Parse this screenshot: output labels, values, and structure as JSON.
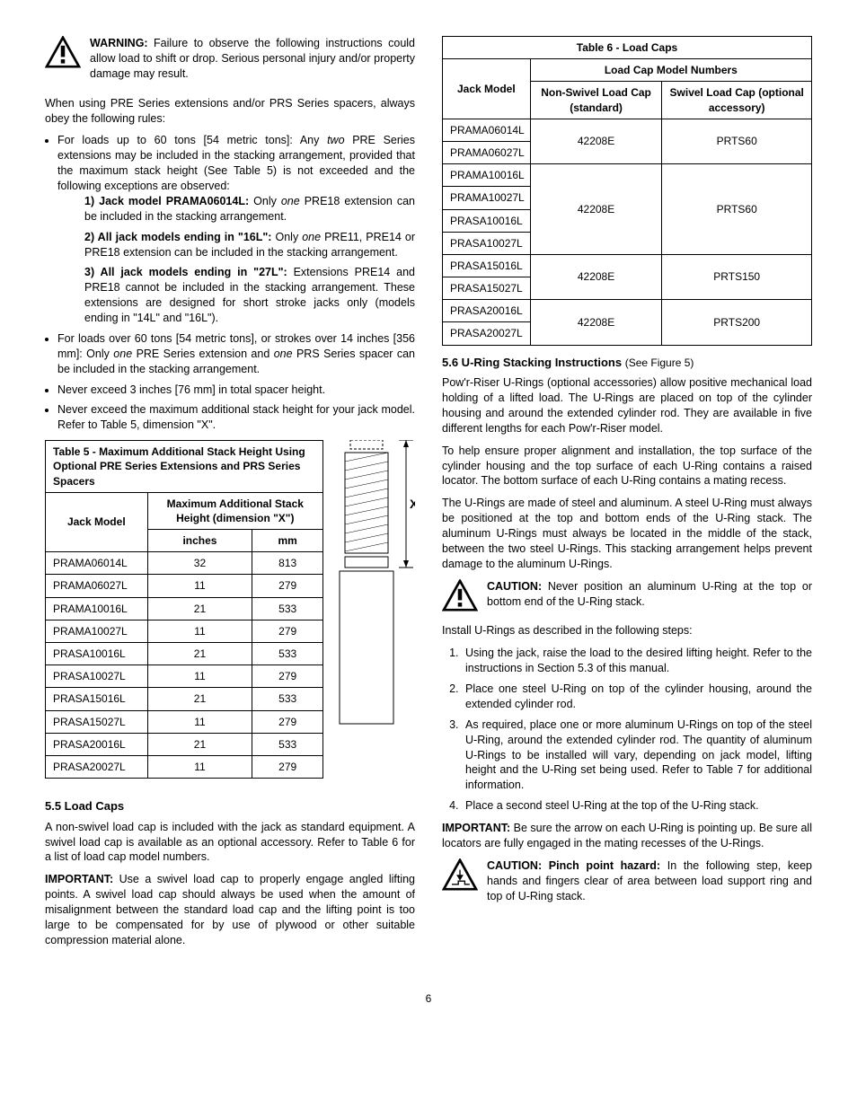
{
  "left": {
    "warning_label": "WARNING:",
    "warning_text": "Failure to observe the following instructions could allow load to shift or drop. Serious personal injury and/or property damage may result.",
    "intro": "When using PRE Series extensions and/or PRS Series spacers, always obey the following rules:",
    "bullet1_a": "For loads up to 60 tons [54 metric tons]: Any ",
    "bullet1_i": "two",
    "bullet1_b": " PRE Series extensions may be included in the stacking arrangement, provided that the maximum stack height (See Table 5) is not exceeded and the following exceptions are observed:",
    "sub1_label": "1) Jack model PRAMA06014L:",
    "sub1_a": " Only ",
    "sub1_i": "one",
    "sub1_b": " PRE18 extension can be included in the stacking arrangement.",
    "sub2_label": "2) All jack models ending in \"16L\":",
    "sub2_a": " Only ",
    "sub2_i": "one",
    "sub2_b": " PRE11, PRE14 or PRE18 extension can be included in the stacking arrangement.",
    "sub3_label": "3) All jack models ending in \"27L\":",
    "sub3_a": " Extensions PRE14 and PRE18 cannot be included in the stacking arrangement. ",
    "sub3_b": "These extensions are designed for short stroke jacks only (models ending in \"14L\" and \"16L\").",
    "bullet2_a": "For loads over 60 tons [54 metric tons], or strokes over 14 inches [356 mm]: Only ",
    "bullet2_i1": "one",
    "bullet2_b": " PRE Series extension and ",
    "bullet2_i2": "one",
    "bullet2_c": " PRS Series spacer can be included in the stacking arrangement.",
    "bullet3": "Never exceed 3 inches [76 mm] in total spacer height.",
    "bullet4": "Never exceed the maximum additional stack height for your jack model. Refer to Table 5, dimension \"X\".",
    "table5": {
      "title": "Table 5 - Maximum Additional Stack Height Using Optional PRE Series Extensions and PRS Series Spacers",
      "col_model": "Jack Model",
      "col_stack": "Maximum Additional Stack Height (dimension \"X\")",
      "col_in": "inches",
      "col_mm": "mm",
      "rows": [
        {
          "m": "PRAMA06014L",
          "in": "32",
          "mm": "813"
        },
        {
          "m": "PRAMA06027L",
          "in": "11",
          "mm": "279"
        },
        {
          "m": "PRAMA10016L",
          "in": "21",
          "mm": "533"
        },
        {
          "m": "PRAMA10027L",
          "in": "11",
          "mm": "279"
        },
        {
          "m": "PRASA10016L",
          "in": "21",
          "mm": "533"
        },
        {
          "m": "PRASA10027L",
          "in": "11",
          "mm": "279"
        },
        {
          "m": "PRASA15016L",
          "in": "21",
          "mm": "533"
        },
        {
          "m": "PRASA15027L",
          "in": "11",
          "mm": "279"
        },
        {
          "m": "PRASA20016L",
          "in": "21",
          "mm": "533"
        },
        {
          "m": "PRASA20027L",
          "in": "11",
          "mm": "279"
        }
      ],
      "x_label": "X"
    },
    "sec55_head": "5.5  Load Caps",
    "sec55_p1": "A non-swivel load cap is included with the jack as standard equipment. A swivel load cap is available as an optional accessory. Refer to Table 6 for a list of load cap model numbers.",
    "sec55_imp_label": "IMPORTANT:",
    "sec55_imp": " Use a swivel load cap to properly engage angled lifting points. A swivel load cap should always be used when the amount of misalignment between the standard load cap and the lifting point is too large to be compensated for by use of plywood or other suitable compression material alone."
  },
  "right": {
    "table6": {
      "title": "Table 6 - Load Caps",
      "col_model": "Jack Model",
      "col_group": "Load Cap Model Numbers",
      "col_ns": "Non-Swivel Load Cap (standard)",
      "col_sw": "Swivel Load Cap (optional accessory)",
      "groups": [
        {
          "models": [
            "PRAMA06014L",
            "PRAMA06027L"
          ],
          "ns": "42208E",
          "sw": "PRTS60"
        },
        {
          "models": [
            "PRAMA10016L",
            "PRAMA10027L",
            "PRASA10016L",
            "PRASA10027L"
          ],
          "ns": "42208E",
          "sw": "PRTS60"
        },
        {
          "models": [
            "PRASA15016L",
            "PRASA15027L"
          ],
          "ns": "42208E",
          "sw": "PRTS150"
        },
        {
          "models": [
            "PRASA20016L",
            "PRASA20027L"
          ],
          "ns": "42208E",
          "sw": "PRTS200"
        }
      ]
    },
    "sec56_head": "5.6  U-Ring Stacking Instructions ",
    "sec56_head_note": "(See Figure 5)",
    "p1": "Pow'r-Riser U-Rings (optional accessories) allow positive mechanical load holding of a lifted load. The U-Rings are placed on top of the cylinder housing and around the extended cylinder rod. They are available in five different lengths for each Pow'r-Riser model.",
    "p2": "To help ensure proper alignment and installation, the top surface of the cylinder housing and the top surface of each U-Ring contains a raised locator. The bottom surface of each U-Ring contains a mating recess.",
    "p3": "The U-Rings are made of steel and aluminum. A steel U-Ring must always be positioned at the top and bottom ends of the U-Ring stack. The aluminum U-Rings must always be located in the middle of the stack, between the two steel U-Rings. This stacking arrangement helps prevent damage to the aluminum U-Rings.",
    "caution1_label": "CAUTION:",
    "caution1": " Never position an aluminum U-Ring at the top or bottom end of the U-Ring stack.",
    "p4": "Install U-Rings as described in the following steps:",
    "steps": [
      "Using the jack, raise the load to the desired lifting height. Refer to the instructions in Section 5.3 of this manual.",
      "Place one steel U-Ring on top of the cylinder housing, around the extended cylinder rod.",
      "As required, place one or more aluminum U-Rings on top of the steel U-Ring, around the extended cylinder rod. The quantity of aluminum U-Rings to be installed will vary, depending on jack model, lifting height and the U-Ring set being used. Refer to Table 7 for additional information.",
      "Place a second steel U-Ring at the top of the U-Ring stack."
    ],
    "imp2_label": "IMPORTANT:",
    "imp2": " Be sure the arrow on each U-Ring is pointing up. Be sure all locators are fully engaged in the mating recesses of the U-Rings.",
    "caution2_label": "CAUTION: Pinch point hazard:",
    "caution2": " In the following step, keep hands and fingers clear of area between load support ring and top of U-Ring stack."
  },
  "page_number": "6"
}
